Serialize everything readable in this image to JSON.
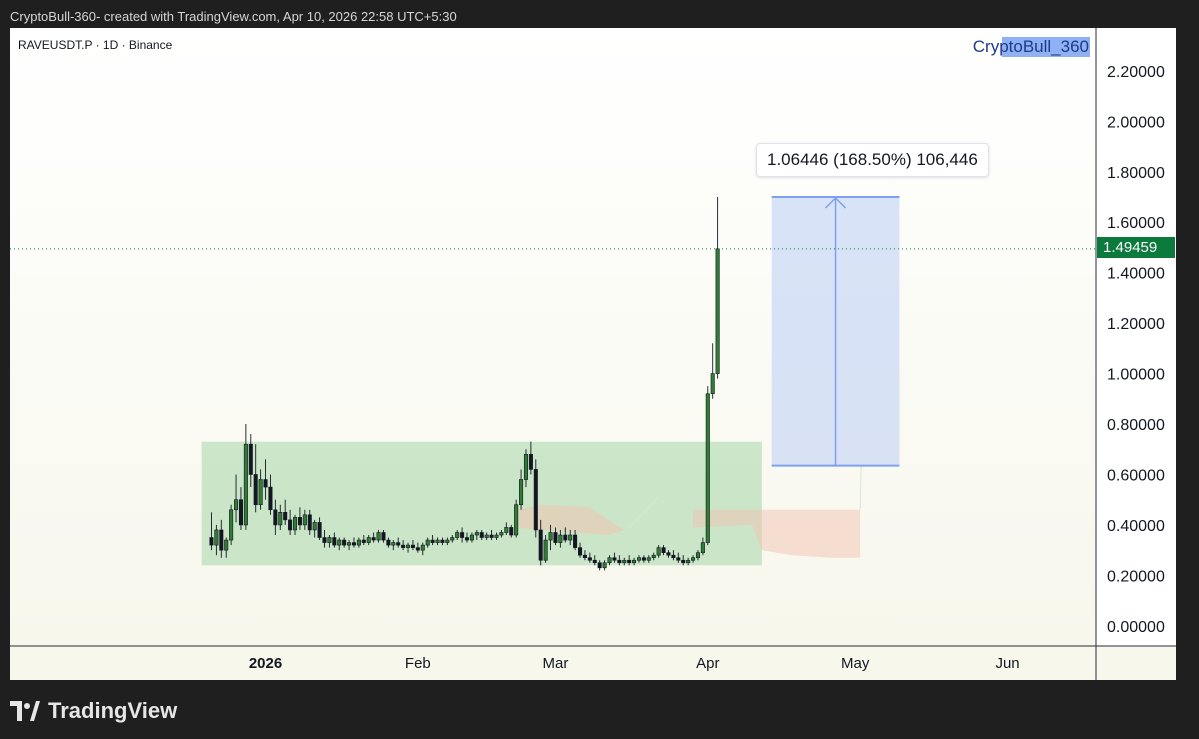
{
  "header": {
    "attribution": "CryptoBull-360- created with TradingView.com, Apr 10, 2026 22:58 UTC+5:30"
  },
  "legend": {
    "symbol": "RAVEUSDT.P · 1D · Binance"
  },
  "watermark": {
    "text": "CryptoBull_360"
  },
  "footer": {
    "brand": "TradingView"
  },
  "colors": {
    "up": "#2e7d32",
    "down": "#131722",
    "accumulation_zone": "#a5d6a7",
    "target_zone": "#bbcdf5",
    "price_line": "#0b7a3c",
    "cloud": "#f2c4b2"
  },
  "chart_data": {
    "type": "candlestick",
    "symbol": "RAVEUSDT.P",
    "interval": "1D",
    "exchange": "Binance",
    "last_price": "1.49459",
    "y_range": [
      -0.08,
      2.37
    ],
    "y_ticks": [
      "0.00000",
      "0.20000",
      "0.40000",
      "0.60000",
      "0.80000",
      "1.00000",
      "1.20000",
      "1.40000",
      "1.60000",
      "1.80000",
      "2.00000",
      "2.20000"
    ],
    "x_ticks": [
      {
        "label": "2026",
        "date": "2026-01-01",
        "bold": true
      },
      {
        "label": "Feb",
        "date": "2026-02-01"
      },
      {
        "label": "Mar",
        "date": "2026-03-01"
      },
      {
        "label": "Apr",
        "date": "2026-04-01"
      },
      {
        "label": "May",
        "date": "2026-05-01"
      },
      {
        "label": "Jun",
        "date": "2026-06-01"
      }
    ],
    "x_range": [
      "2025-11-10",
      "2026-06-19"
    ],
    "first_date": "2025-12-21",
    "ohlc": [
      [
        0.35,
        0.45,
        0.3,
        0.32
      ],
      [
        0.32,
        0.4,
        0.28,
        0.38
      ],
      [
        0.38,
        0.42,
        0.27,
        0.3
      ],
      [
        0.3,
        0.35,
        0.27,
        0.34
      ],
      [
        0.34,
        0.48,
        0.32,
        0.46
      ],
      [
        0.46,
        0.6,
        0.41,
        0.5
      ],
      [
        0.5,
        0.55,
        0.38,
        0.4
      ],
      [
        0.4,
        0.8,
        0.38,
        0.72
      ],
      [
        0.72,
        0.76,
        0.55,
        0.6
      ],
      [
        0.6,
        0.72,
        0.45,
        0.48
      ],
      [
        0.48,
        0.62,
        0.46,
        0.58
      ],
      [
        0.58,
        0.66,
        0.5,
        0.55
      ],
      [
        0.55,
        0.6,
        0.44,
        0.46
      ],
      [
        0.46,
        0.5,
        0.36,
        0.4
      ],
      [
        0.4,
        0.48,
        0.38,
        0.45
      ],
      [
        0.45,
        0.5,
        0.4,
        0.42
      ],
      [
        0.42,
        0.46,
        0.36,
        0.38
      ],
      [
        0.38,
        0.44,
        0.36,
        0.43
      ],
      [
        0.43,
        0.47,
        0.38,
        0.4
      ],
      [
        0.4,
        0.46,
        0.38,
        0.44
      ],
      [
        0.44,
        0.46,
        0.36,
        0.38
      ],
      [
        0.38,
        0.42,
        0.35,
        0.41
      ],
      [
        0.41,
        0.43,
        0.34,
        0.35
      ],
      [
        0.35,
        0.38,
        0.31,
        0.33
      ],
      [
        0.33,
        0.36,
        0.31,
        0.35
      ],
      [
        0.35,
        0.37,
        0.31,
        0.32
      ],
      [
        0.32,
        0.35,
        0.3,
        0.34
      ],
      [
        0.34,
        0.35,
        0.31,
        0.32
      ],
      [
        0.32,
        0.34,
        0.3,
        0.33
      ],
      [
        0.33,
        0.35,
        0.31,
        0.32
      ],
      [
        0.32,
        0.35,
        0.31,
        0.34
      ],
      [
        0.34,
        0.36,
        0.32,
        0.33
      ],
      [
        0.33,
        0.36,
        0.32,
        0.35
      ],
      [
        0.35,
        0.37,
        0.33,
        0.34
      ],
      [
        0.34,
        0.38,
        0.33,
        0.37
      ],
      [
        0.37,
        0.38,
        0.33,
        0.34
      ],
      [
        0.34,
        0.35,
        0.31,
        0.32
      ],
      [
        0.32,
        0.34,
        0.3,
        0.33
      ],
      [
        0.33,
        0.35,
        0.31,
        0.32
      ],
      [
        0.32,
        0.34,
        0.3,
        0.31
      ],
      [
        0.31,
        0.33,
        0.29,
        0.32
      ],
      [
        0.32,
        0.34,
        0.3,
        0.31
      ],
      [
        0.31,
        0.33,
        0.29,
        0.3
      ],
      [
        0.3,
        0.33,
        0.28,
        0.32
      ],
      [
        0.32,
        0.35,
        0.31,
        0.34
      ],
      [
        0.34,
        0.36,
        0.32,
        0.33
      ],
      [
        0.33,
        0.35,
        0.32,
        0.34
      ],
      [
        0.34,
        0.35,
        0.32,
        0.33
      ],
      [
        0.33,
        0.35,
        0.32,
        0.34
      ],
      [
        0.34,
        0.36,
        0.33,
        0.35
      ],
      [
        0.35,
        0.38,
        0.34,
        0.37
      ],
      [
        0.37,
        0.39,
        0.33,
        0.35
      ],
      [
        0.35,
        0.37,
        0.33,
        0.34
      ],
      [
        0.34,
        0.37,
        0.33,
        0.36
      ],
      [
        0.36,
        0.38,
        0.34,
        0.37
      ],
      [
        0.37,
        0.38,
        0.34,
        0.35
      ],
      [
        0.35,
        0.37,
        0.34,
        0.36
      ],
      [
        0.36,
        0.38,
        0.34,
        0.35
      ],
      [
        0.35,
        0.37,
        0.34,
        0.36
      ],
      [
        0.36,
        0.38,
        0.35,
        0.37
      ],
      [
        0.37,
        0.41,
        0.36,
        0.39
      ],
      [
        0.39,
        0.4,
        0.35,
        0.36
      ],
      [
        0.36,
        0.5,
        0.35,
        0.48
      ],
      [
        0.48,
        0.62,
        0.46,
        0.58
      ],
      [
        0.58,
        0.7,
        0.55,
        0.68
      ],
      [
        0.68,
        0.73,
        0.6,
        0.62
      ],
      [
        0.62,
        0.66,
        0.35,
        0.38
      ],
      [
        0.38,
        0.42,
        0.24,
        0.26
      ],
      [
        0.26,
        0.36,
        0.25,
        0.34
      ],
      [
        0.34,
        0.4,
        0.3,
        0.37
      ],
      [
        0.37,
        0.39,
        0.32,
        0.33
      ],
      [
        0.33,
        0.38,
        0.31,
        0.36
      ],
      [
        0.36,
        0.39,
        0.33,
        0.34
      ],
      [
        0.34,
        0.38,
        0.32,
        0.36
      ],
      [
        0.36,
        0.38,
        0.3,
        0.31
      ],
      [
        0.31,
        0.33,
        0.27,
        0.28
      ],
      [
        0.28,
        0.3,
        0.26,
        0.27
      ],
      [
        0.27,
        0.29,
        0.25,
        0.26
      ],
      [
        0.26,
        0.28,
        0.24,
        0.25
      ],
      [
        0.25,
        0.26,
        0.22,
        0.23
      ],
      [
        0.23,
        0.26,
        0.22,
        0.25
      ],
      [
        0.25,
        0.28,
        0.24,
        0.27
      ],
      [
        0.27,
        0.29,
        0.25,
        0.26
      ],
      [
        0.26,
        0.28,
        0.24,
        0.25
      ],
      [
        0.25,
        0.27,
        0.24,
        0.26
      ],
      [
        0.26,
        0.28,
        0.24,
        0.25
      ],
      [
        0.25,
        0.27,
        0.24,
        0.26
      ],
      [
        0.26,
        0.28,
        0.25,
        0.27
      ],
      [
        0.27,
        0.28,
        0.25,
        0.26
      ],
      [
        0.26,
        0.28,
        0.25,
        0.27
      ],
      [
        0.27,
        0.29,
        0.26,
        0.28
      ],
      [
        0.28,
        0.32,
        0.27,
        0.31
      ],
      [
        0.31,
        0.32,
        0.28,
        0.29
      ],
      [
        0.29,
        0.3,
        0.27,
        0.28
      ],
      [
        0.28,
        0.3,
        0.26,
        0.27
      ],
      [
        0.27,
        0.29,
        0.25,
        0.26
      ],
      [
        0.26,
        0.28,
        0.24,
        0.25
      ],
      [
        0.25,
        0.27,
        0.24,
        0.26
      ],
      [
        0.26,
        0.28,
        0.25,
        0.27
      ],
      [
        0.27,
        0.3,
        0.26,
        0.29
      ],
      [
        0.29,
        0.35,
        0.28,
        0.33
      ],
      [
        0.33,
        0.95,
        0.32,
        0.92
      ],
      [
        0.92,
        1.12,
        0.9,
        1.0
      ],
      [
        1.0,
        1.7,
        0.98,
        1.49459
      ]
    ],
    "accumulation_zone": {
      "from_date": "2025-12-19",
      "to_date": "2026-04-12",
      "low": 0.24,
      "high": 0.73
    },
    "target_zone": {
      "from_date": "2026-04-14",
      "to_date": "2026-05-10",
      "low": 0.635,
      "high": 1.7
    },
    "measure": {
      "label": "1.06446 (168.50%) 106,446",
      "change": "1.06446",
      "percent": "168.50%",
      "ticks": "106,446"
    }
  }
}
